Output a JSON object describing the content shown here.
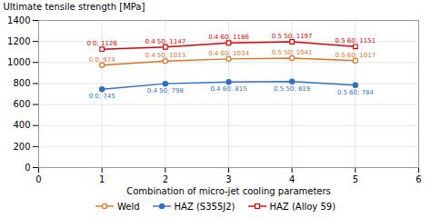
{
  "chart_data": {
    "type": "line",
    "x": [
      1,
      2,
      3,
      4,
      5
    ],
    "series": [
      {
        "name": "Weld",
        "color": "#E07020",
        "marker": "circle",
        "values": [
          974,
          1013,
          1034,
          1041,
          1017
        ],
        "value_labels": [
          "0 0; 974",
          "0.4 50; 1013",
          "0.4 60; 1034",
          "0.5 50; 1041",
          "0.5 60; 1017"
        ]
      },
      {
        "name": "HAZ (S355J2)",
        "color": "#3070C0",
        "marker": "dot",
        "values": [
          745,
          798,
          815,
          819,
          784
        ],
        "value_labels": [
          "0 0; 745",
          "0.4 50; 798",
          "0.4 60; 815",
          "0.5 50; 819",
          "0.5 60; 784"
        ]
      },
      {
        "name": "HAZ (Alloy 59)",
        "color": "#E00000",
        "marker": "square",
        "values": [
          1126,
          1147,
          1186,
          1197,
          1151
        ],
        "value_labels": [
          "0 0; 1126",
          "0.4 50; 1147",
          "0.4 60; 1186",
          "0.5 50; 1197",
          "0.5 60; 1151"
        ]
      }
    ],
    "xlabel": "Combination of micro-jet cooling parameters",
    "ylabel": "Ultimate tensile strength [MPa]",
    "xlim": [
      0,
      6
    ],
    "ylim": [
      0,
      1400
    ],
    "xticks": [
      0,
      1,
      2,
      3,
      4,
      5,
      6
    ],
    "yticks": [
      0,
      200,
      400,
      600,
      800,
      1000,
      1200,
      1400
    ],
    "grid": true,
    "data_labels": true,
    "legend": "bottom"
  }
}
